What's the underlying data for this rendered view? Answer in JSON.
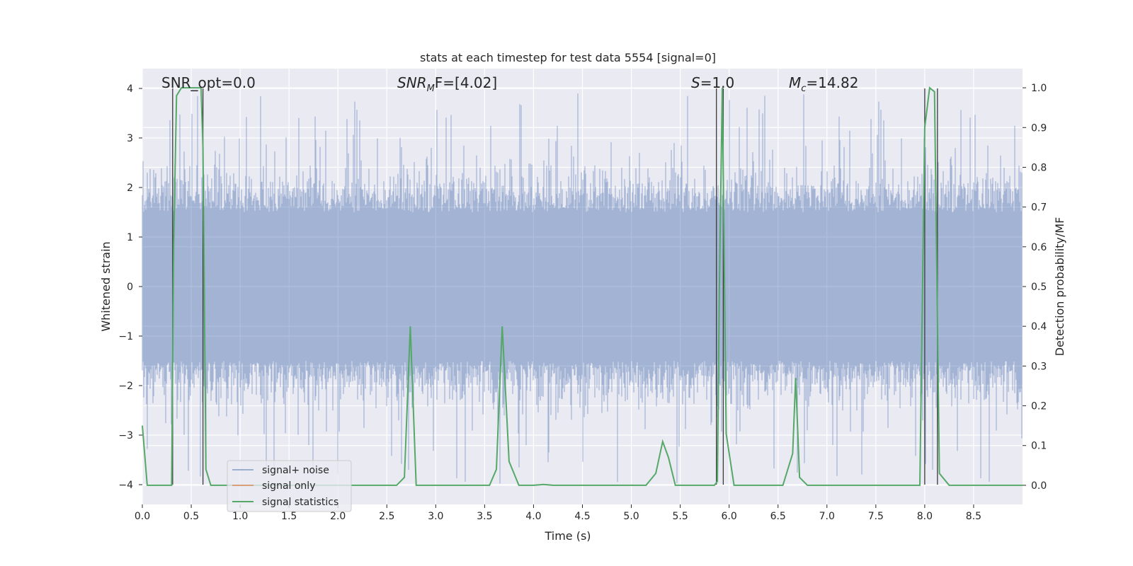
{
  "chart_data": {
    "type": "line",
    "title": "stats at each timestep for test data 5554 [signal=0]",
    "xlabel": "Time (s)",
    "ylabel": "Whitened strain",
    "y2label": "Detection probability/MF",
    "xlim": [
      0,
      9.0
    ],
    "ylim": [
      -4.4,
      4.4
    ],
    "y2lim": [
      -0.0482,
      1.0482
    ],
    "xticks": [
      "0.0",
      "0.5",
      "1.0",
      "1.5",
      "2.0",
      "2.5",
      "3.0",
      "3.5",
      "4.0",
      "4.5",
      "5.0",
      "5.5",
      "6.0",
      "6.5",
      "7.0",
      "7.5",
      "8.0",
      "8.5"
    ],
    "yticks": [
      "−4",
      "−3",
      "−2",
      "−1",
      "0",
      "1",
      "2",
      "3",
      "4"
    ],
    "y2ticks": [
      "0.0",
      "0.1",
      "0.2",
      "0.3",
      "0.4",
      "0.5",
      "0.6",
      "0.7",
      "0.8",
      "0.9",
      "1.0"
    ],
    "grid": true,
    "legend": {
      "placement": "lower-left",
      "entries": [
        {
          "label": "signal+ noise",
          "color": "#4c72b0"
        },
        {
          "label": "signal only",
          "color": "#dd8452"
        },
        {
          "label": "signal statistics",
          "color": "#55a868"
        }
      ]
    },
    "annotations": [
      {
        "text": "SNR_opt=0.0"
      },
      {
        "base": "SNR",
        "sub": "M",
        "rest": "F=[4.02]"
      },
      {
        "base": "S",
        "rest": "=1.0"
      },
      {
        "base": "M",
        "sub": "c",
        "rest": "=14.82"
      }
    ],
    "noise_envelope": {
      "typical_abs_max": 2.0,
      "spike_max": 3.9,
      "spike_min": -4.0
    },
    "statistics_series": {
      "name": "signal statistics",
      "axis": "right",
      "x": [
        0.0,
        0.05,
        0.1,
        0.3,
        0.32,
        0.35,
        0.4,
        0.6,
        0.62,
        0.65,
        0.7,
        0.8,
        2.6,
        2.68,
        2.74,
        2.8,
        3.2,
        3.55,
        3.62,
        3.68,
        3.75,
        3.85,
        4.0,
        4.1,
        4.2,
        5.15,
        5.25,
        5.32,
        5.38,
        5.45,
        5.55,
        5.85,
        5.88,
        5.9,
        5.93,
        5.97,
        6.05,
        6.55,
        6.65,
        6.68,
        6.72,
        6.8,
        7.95,
        8.0,
        8.05,
        8.1,
        8.15,
        8.25,
        9.0
      ],
      "y": [
        0.15,
        0.0,
        0.0,
        0.0,
        0.6,
        0.98,
        1.0,
        1.0,
        0.85,
        0.04,
        0.0,
        0.0,
        0.0,
        0.02,
        0.4,
        0.0,
        0.0,
        0.0,
        0.04,
        0.4,
        0.06,
        0.0,
        0.0,
        0.002,
        0.0,
        0.0,
        0.03,
        0.11,
        0.07,
        0.0,
        0.0,
        0.0,
        0.01,
        0.5,
        1.0,
        0.13,
        0.0,
        0.0,
        0.08,
        0.27,
        0.02,
        0.0,
        0.0,
        0.9,
        1.0,
        0.99,
        0.03,
        0.0,
        0.0
      ]
    },
    "marker_lines_x": [
      0.31,
      0.62,
      5.87,
      5.94,
      8.0,
      8.13
    ]
  }
}
